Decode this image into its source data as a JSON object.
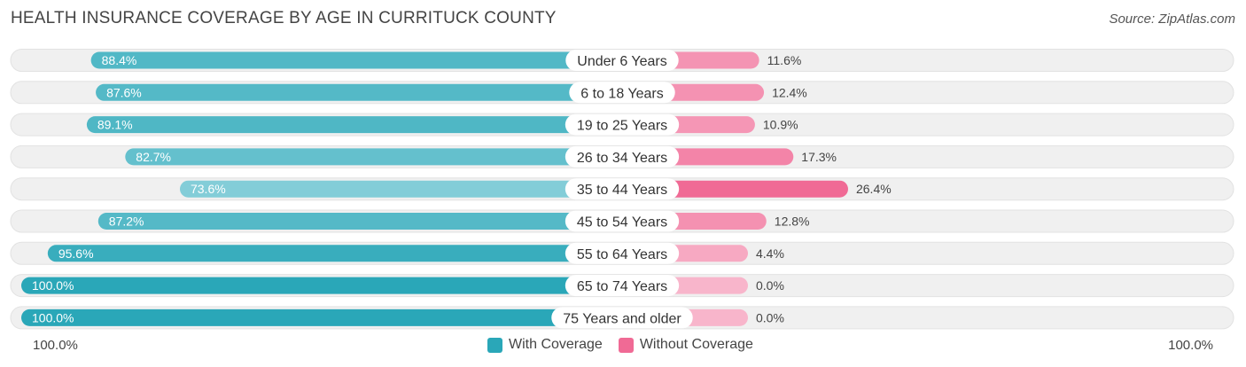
{
  "title": "HEALTH INSURANCE COVERAGE BY AGE IN CURRITUCK COUNTY",
  "source": "Source: ZipAtlas.com",
  "colors": {
    "with_dark": "#2aa7b8",
    "with_light": "#8fd2dc",
    "without_dark": "#f06a95",
    "without_light": "#f8b5cb",
    "track": "#f0f0f0"
  },
  "chart_data": {
    "type": "bar",
    "orientation": "horizontal-diverging",
    "categories": [
      "Under 6 Years",
      "6 to 18 Years",
      "19 to 25 Years",
      "26 to 34 Years",
      "35 to 44 Years",
      "45 to 54 Years",
      "55 to 64 Years",
      "65 to 74 Years",
      "75 Years and older"
    ],
    "series": [
      {
        "name": "With Coverage",
        "values": [
          88.4,
          87.6,
          89.1,
          82.7,
          73.6,
          87.2,
          95.6,
          100.0,
          100.0
        ],
        "labels": [
          "88.4%",
          "87.6%",
          "89.1%",
          "82.7%",
          "73.6%",
          "87.2%",
          "95.6%",
          "100.0%",
          "100.0%"
        ]
      },
      {
        "name": "Without Coverage",
        "values": [
          11.6,
          12.4,
          10.9,
          17.3,
          26.4,
          12.8,
          4.4,
          0.0,
          0.0
        ],
        "labels": [
          "11.6%",
          "12.4%",
          "10.9%",
          "17.3%",
          "26.4%",
          "12.8%",
          "4.4%",
          "0.0%",
          "0.0%"
        ]
      }
    ],
    "xlim": [
      0,
      100
    ],
    "axis_left_label": "100.0%",
    "axis_right_label": "100.0%",
    "legend": [
      "With Coverage",
      "Without Coverage"
    ],
    "legend_position": "bottom-center"
  }
}
